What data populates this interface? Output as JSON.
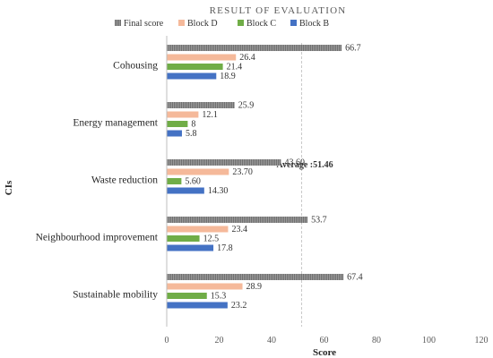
{
  "chart_data": {
    "type": "bar",
    "orientation": "horizontal",
    "title": "RESULT OF EVALUATION",
    "xlabel": "Score",
    "ylabel": "CIs",
    "xlim": [
      0,
      120
    ],
    "xticks": [
      "0",
      "20",
      "40",
      "60",
      "80",
      "100",
      "120"
    ],
    "grid": false,
    "legend_position": "top",
    "categories": [
      "Cohousing",
      "Energy management",
      "Waste reduction",
      "Neighbourhood improvement",
      "Sustainable mobility"
    ],
    "series": [
      {
        "name": "Final score",
        "color": "#8c8c8c",
        "values": [
          66.7,
          25.9,
          43.6,
          53.7,
          67.4
        ],
        "labels": [
          "66.7",
          "25.9",
          "43.60",
          "53.7",
          "67.4"
        ]
      },
      {
        "name": "Block D",
        "color": "#f5b99a",
        "values": [
          26.4,
          12.1,
          23.7,
          23.4,
          28.9
        ],
        "labels": [
          "26.4",
          "12.1",
          "23.70",
          "23.4",
          "28.9"
        ]
      },
      {
        "name": "Block C",
        "color": "#70ad47",
        "values": [
          21.4,
          8,
          5.6,
          12.5,
          15.3
        ],
        "labels": [
          "21.4",
          "8",
          "5.60",
          "12.5",
          "15.3"
        ]
      },
      {
        "name": "Block B",
        "color": "#4472c4",
        "values": [
          18.9,
          5.8,
          14.3,
          17.8,
          23.2
        ],
        "labels": [
          "18.9",
          "5.8",
          "14.30",
          "17.8",
          "23.2"
        ]
      }
    ],
    "reference_line": {
      "value": 51.46,
      "label": "Average :51.46"
    }
  }
}
